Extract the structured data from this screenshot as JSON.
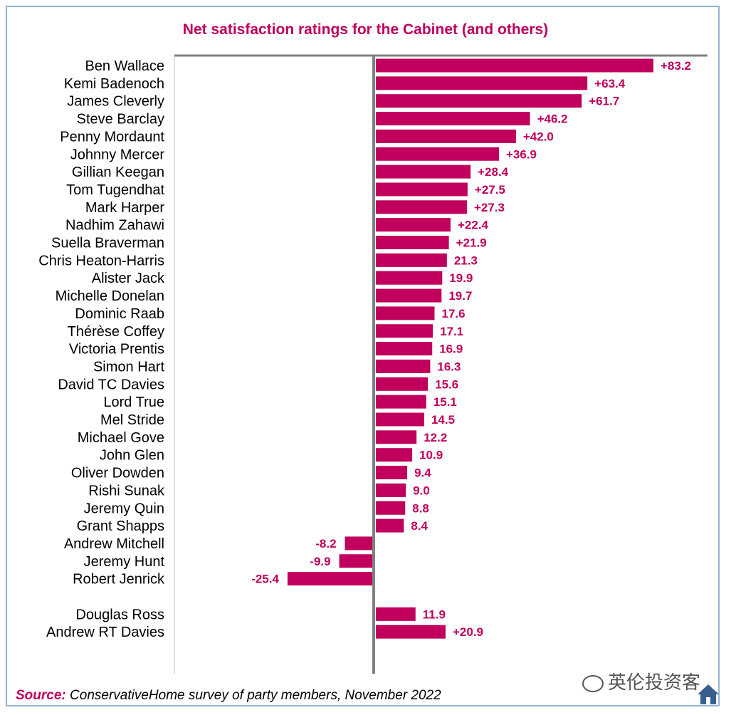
{
  "chart_data": {
    "type": "bar",
    "orientation": "horizontal",
    "title": "Net satisfaction ratings for the Cabinet (and others)",
    "xlim": [
      -55,
      85
    ],
    "grid": false,
    "colors": {
      "bar": "#c0005c",
      "axis": "#808080",
      "label": "#c0005c"
    },
    "items": [
      {
        "name": "Ben Wallace",
        "value": 83.2,
        "label": "+83.2"
      },
      {
        "name": "Kemi Badenoch",
        "value": 63.4,
        "label": "+63.4"
      },
      {
        "name": "James Cleverly",
        "value": 61.7,
        "label": "+61.7"
      },
      {
        "name": "Steve Barclay",
        "value": 46.2,
        "label": "+46.2"
      },
      {
        "name": "Penny Mordaunt",
        "value": 42.0,
        "label": "+42.0"
      },
      {
        "name": "Johnny Mercer",
        "value": 36.9,
        "label": "+36.9"
      },
      {
        "name": "Gillian Keegan",
        "value": 28.4,
        "label": "+28.4"
      },
      {
        "name": "Tom Tugendhat",
        "value": 27.5,
        "label": "+27.5"
      },
      {
        "name": "Mark Harper",
        "value": 27.3,
        "label": "+27.3"
      },
      {
        "name": "Nadhim Zahawi",
        "value": 22.4,
        "label": "+22.4"
      },
      {
        "name": "Suella Braverman",
        "value": 21.9,
        "label": "+21.9"
      },
      {
        "name": "Chris Heaton-Harris",
        "value": 21.3,
        "label": "21.3"
      },
      {
        "name": "Alister Jack",
        "value": 19.9,
        "label": "19.9"
      },
      {
        "name": "Michelle Donelan",
        "value": 19.7,
        "label": "19.7"
      },
      {
        "name": "Dominic Raab",
        "value": 17.6,
        "label": "17.6"
      },
      {
        "name": "Thérèse Coffey",
        "value": 17.1,
        "label": "17.1"
      },
      {
        "name": "Victoria Prentis",
        "value": 16.9,
        "label": "16.9"
      },
      {
        "name": "Simon Hart",
        "value": 16.3,
        "label": "16.3"
      },
      {
        "name": "David TC Davies",
        "value": 15.6,
        "label": "15.6"
      },
      {
        "name": "Lord True",
        "value": 15.1,
        "label": "15.1"
      },
      {
        "name": "Mel Stride",
        "value": 14.5,
        "label": "14.5"
      },
      {
        "name": "Michael Gove",
        "value": 12.2,
        "label": "12.2"
      },
      {
        "name": "John Glen",
        "value": 10.9,
        "label": "10.9"
      },
      {
        "name": "Oliver Dowden",
        "value": 9.4,
        "label": "9.4"
      },
      {
        "name": "Rishi Sunak",
        "value": 9.0,
        "label": "9.0"
      },
      {
        "name": "Jeremy Quin",
        "value": 8.8,
        "label": "8.8"
      },
      {
        "name": "Grant Shapps",
        "value": 8.4,
        "label": "8.4"
      },
      {
        "name": "Andrew Mitchell",
        "value": -8.2,
        "label": "-8.2"
      },
      {
        "name": "Jeremy Hunt",
        "value": -9.9,
        "label": "-9.9"
      },
      {
        "name": "Robert Jenrick",
        "value": -25.4,
        "label": "-25.4"
      },
      {
        "name": "",
        "value": null,
        "label": ""
      },
      {
        "name": "Douglas Ross",
        "value": 11.9,
        "label": "11.9"
      },
      {
        "name": "Andrew RT Davies",
        "value": 20.9,
        "label": "+20.9"
      }
    ]
  },
  "source": {
    "key": "Source:",
    "text": "ConservativeHome survey of party members, November 2022"
  },
  "watermark": {
    "text": "英伦投资客"
  }
}
